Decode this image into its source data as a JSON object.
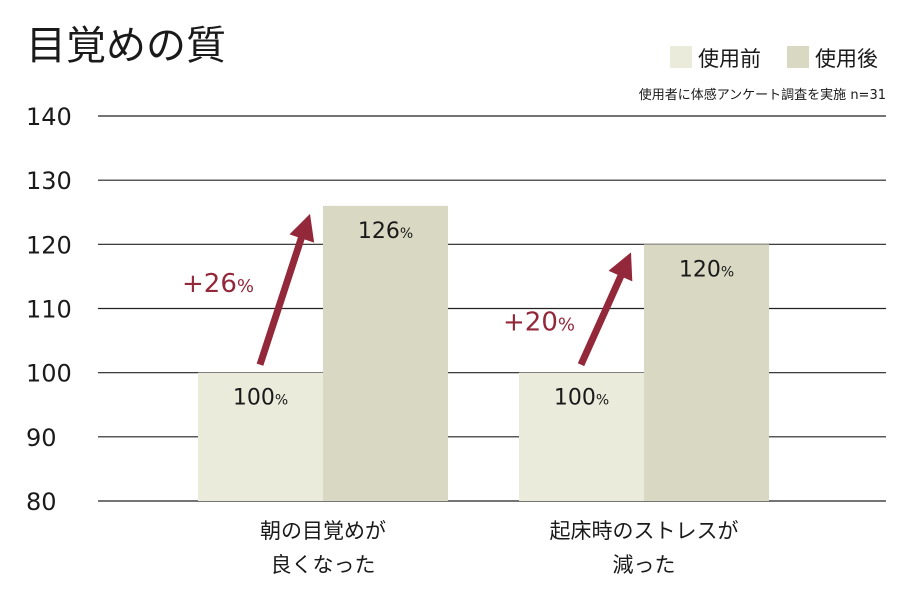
{
  "chart_data": {
    "type": "bar",
    "title": "目覚めの質",
    "note": "使用者に体感アンケート調査を実施 n=31",
    "categories": [
      [
        "朝の目覚めが",
        "良くなった"
      ],
      [
        "起床時のストレスが",
        "減った"
      ]
    ],
    "series": [
      {
        "name": "使用前",
        "values": [
          100,
          100
        ],
        "labels": [
          "100",
          "100"
        ],
        "color": "#ebebdc"
      },
      {
        "name": "使用後",
        "values": [
          126,
          120
        ],
        "labels": [
          "126",
          "120"
        ],
        "color": "#d9d8c3"
      }
    ],
    "label_unit": "%",
    "increases": [
      {
        "sign": "+",
        "number": "26",
        "unit": "%"
      },
      {
        "sign": "+",
        "number": "20",
        "unit": "%"
      }
    ],
    "ylim": [
      80,
      140
    ],
    "yticks": [
      80,
      90,
      100,
      110,
      120,
      130,
      140
    ],
    "grid": true,
    "legend_position": "top-right",
    "arrow_color": "#93283a"
  }
}
